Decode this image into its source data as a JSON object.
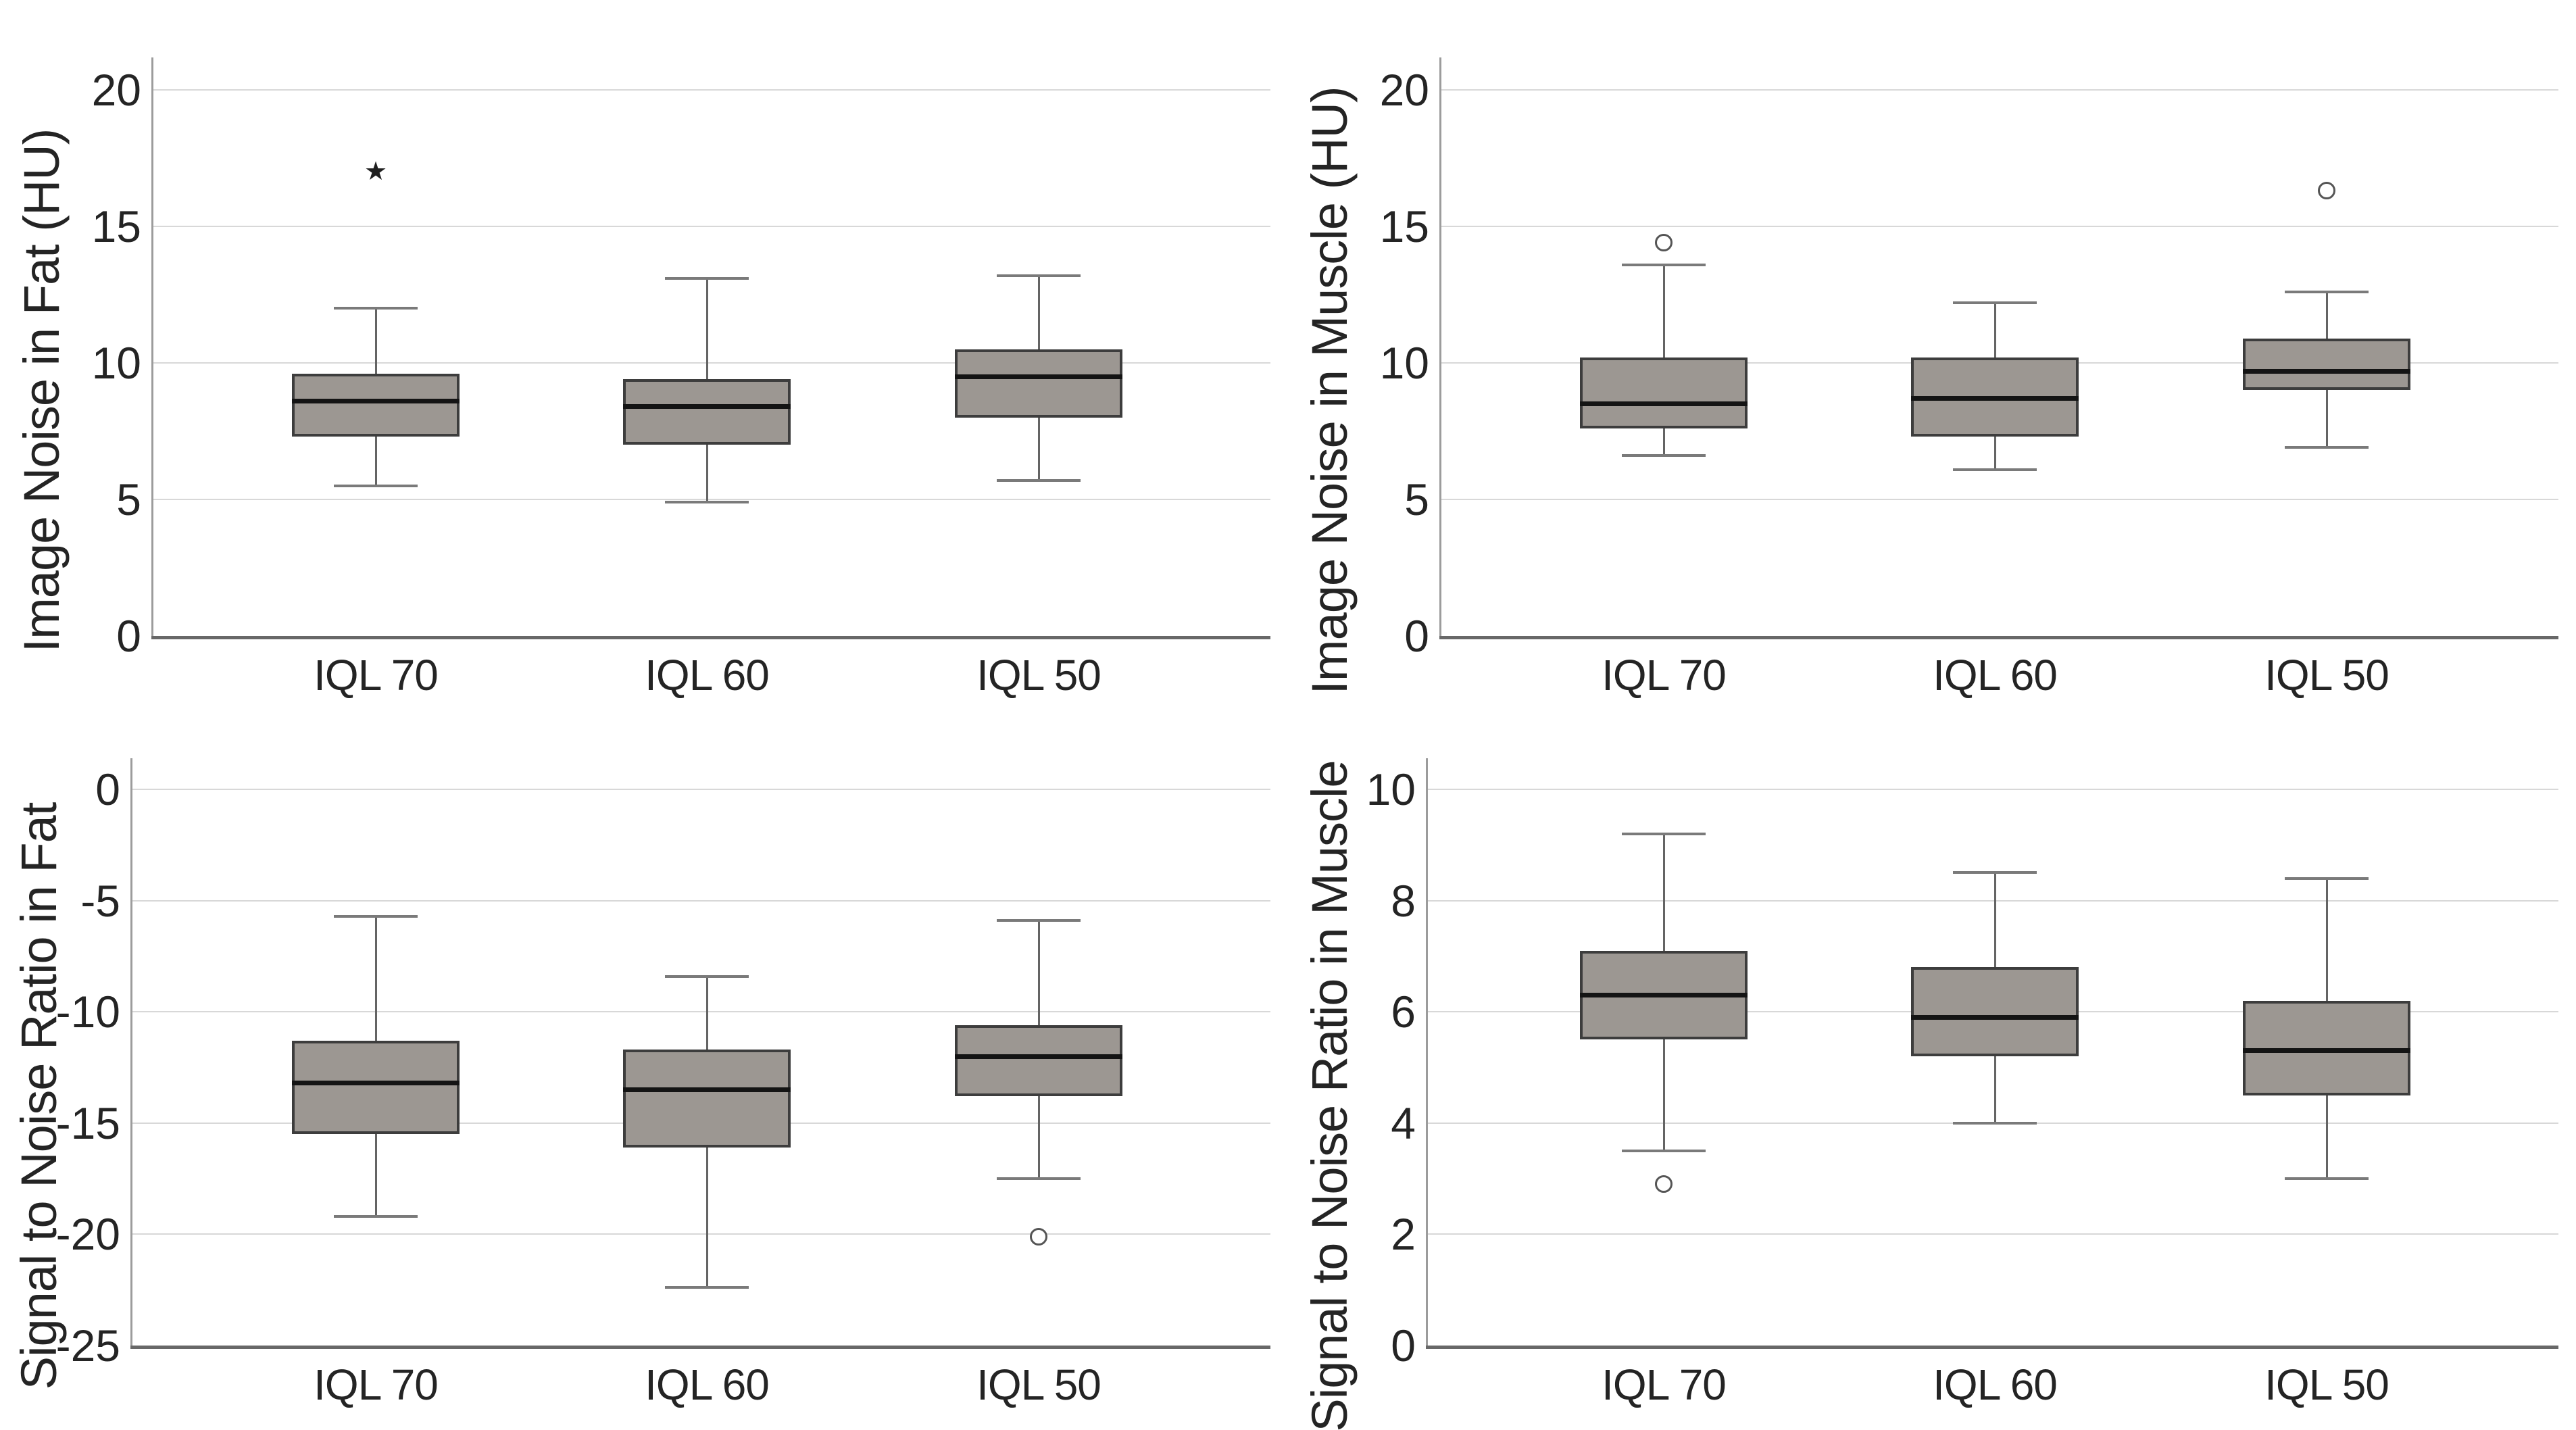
{
  "figure": {
    "background": "#ffffff",
    "colors": {
      "box_fill": "#9c9792",
      "box_border": "#3d3d3d",
      "median": "#141414",
      "whisker": "#646464",
      "whisker_cap": "#7a7a7a",
      "gridline": "#d8d8d8",
      "y_axis_line": "#9c9c9c",
      "x_axis_line": "#686868",
      "text": "#242424"
    },
    "marker_glyphs": {
      "star": "★",
      "circle": "○"
    }
  },
  "chart_data": [
    {
      "type": "box",
      "title": "",
      "xlabel": "",
      "ylabel": "Image Noise in Fat (HU)",
      "categories": [
        "IQL 70",
        "IQL 60",
        "IQL 50"
      ],
      "yticks": [
        0,
        5,
        10,
        15,
        20
      ],
      "ylim": [
        0,
        21.2
      ],
      "grid": true,
      "boxes": [
        {
          "category": "IQL 70",
          "whisker_low": 5.5,
          "q1": 7.3,
          "median": 8.6,
          "q3": 9.6,
          "whisker_high": 12.0,
          "outliers": [
            {
              "value": 17.0,
              "marker": "star"
            }
          ]
        },
        {
          "category": "IQL 60",
          "whisker_low": 4.9,
          "q1": 7.0,
          "median": 8.4,
          "q3": 9.4,
          "whisker_high": 13.1,
          "outliers": []
        },
        {
          "category": "IQL 50",
          "whisker_low": 5.7,
          "q1": 8.0,
          "median": 9.5,
          "q3": 10.5,
          "whisker_high": 13.2,
          "outliers": []
        }
      ]
    },
    {
      "type": "box",
      "title": "",
      "xlabel": "",
      "ylabel": "Image Noise in Muscle (HU)",
      "categories": [
        "IQL 70",
        "IQL 60",
        "IQL 50"
      ],
      "yticks": [
        0,
        5,
        10,
        15,
        20
      ],
      "ylim": [
        0,
        21.2
      ],
      "grid": true,
      "boxes": [
        {
          "category": "IQL 70",
          "whisker_low": 6.6,
          "q1": 7.6,
          "median": 8.5,
          "q3": 10.2,
          "whisker_high": 13.6,
          "outliers": [
            {
              "value": 14.4,
              "marker": "circle"
            }
          ]
        },
        {
          "category": "IQL 60",
          "whisker_low": 6.1,
          "q1": 7.3,
          "median": 8.7,
          "q3": 10.2,
          "whisker_high": 12.2,
          "outliers": []
        },
        {
          "category": "IQL 50",
          "whisker_low": 6.9,
          "q1": 9.0,
          "median": 9.7,
          "q3": 10.9,
          "whisker_high": 12.6,
          "outliers": [
            {
              "value": 16.3,
              "marker": "circle"
            }
          ]
        }
      ]
    },
    {
      "type": "box",
      "title": "",
      "xlabel": "",
      "ylabel": "Signal to Noise Ratio in Fat",
      "categories": [
        "IQL 70",
        "IQL 60",
        "IQL 50"
      ],
      "yticks": [
        -25,
        -20,
        -15,
        -10,
        -5,
        0
      ],
      "ylim": [
        -25,
        1.4
      ],
      "grid": true,
      "boxes": [
        {
          "category": "IQL 70",
          "whisker_low": -19.2,
          "q1": -15.5,
          "median": -13.2,
          "q3": -11.3,
          "whisker_high": -5.7,
          "outliers": []
        },
        {
          "category": "IQL 60",
          "whisker_low": -22.4,
          "q1": -16.1,
          "median": -13.5,
          "q3": -11.7,
          "whisker_high": -8.4,
          "outliers": []
        },
        {
          "category": "IQL 50",
          "whisker_low": -17.5,
          "q1": -13.8,
          "median": -12.0,
          "q3": -10.6,
          "whisker_high": -5.9,
          "outliers": [
            {
              "value": -20.1,
              "marker": "circle"
            }
          ]
        }
      ]
    },
    {
      "type": "box",
      "title": "",
      "xlabel": "",
      "ylabel": "Signal to Noise Ratio in Muscle",
      "categories": [
        "IQL 70",
        "IQL 60",
        "IQL 50"
      ],
      "yticks": [
        0,
        2,
        4,
        6,
        8,
        10
      ],
      "ylim": [
        0,
        10.6
      ],
      "grid": true,
      "boxes": [
        {
          "category": "IQL 70",
          "whisker_low": 3.5,
          "q1": 5.5,
          "median": 6.3,
          "q3": 7.1,
          "whisker_high": 9.2,
          "outliers": [
            {
              "value": 2.9,
              "marker": "circle"
            }
          ]
        },
        {
          "category": "IQL 60",
          "whisker_low": 4.0,
          "q1": 5.2,
          "median": 5.9,
          "q3": 6.8,
          "whisker_high": 8.5,
          "outliers": []
        },
        {
          "category": "IQL 50",
          "whisker_low": 3.0,
          "q1": 4.5,
          "median": 5.3,
          "q3": 6.2,
          "whisker_high": 8.4,
          "outliers": []
        }
      ]
    }
  ]
}
